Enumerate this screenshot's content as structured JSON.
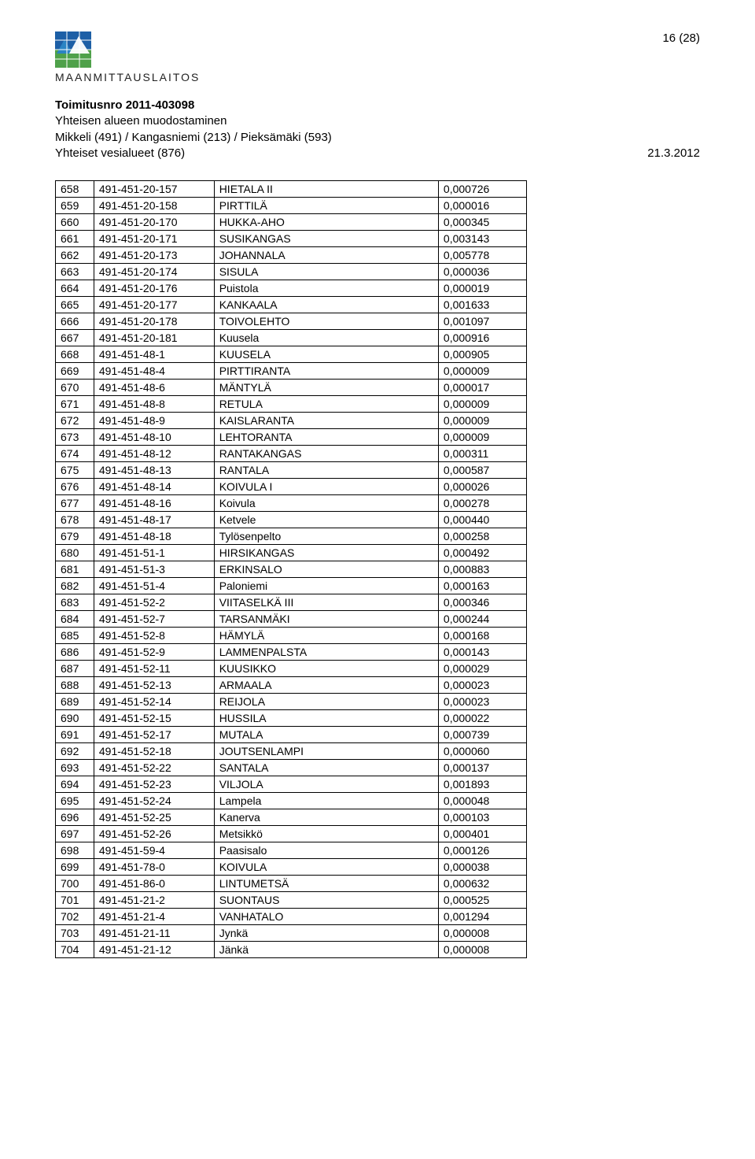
{
  "page_number": "16 (28)",
  "logo_text": "MAANMITTAUSLAITOS",
  "logo_colors": {
    "blue1": "#1d5fa6",
    "blue2": "#2b84c4",
    "green": "#4fa14a"
  },
  "header": {
    "line1": "Toimitusnro 2011-403098",
    "line2": "Yhteisen alueen muodostaminen",
    "line3": "Mikkeli (491) / Kangasniemi (213) / Pieksämäki (593)",
    "line4": "Yhteiset vesialueet (876)",
    "date": "21.3.2012"
  },
  "table": {
    "columns": [
      "n",
      "id",
      "name",
      "val"
    ],
    "rows": [
      [
        "658",
        "491-451-20-157",
        "HIETALA II",
        "0,000726"
      ],
      [
        "659",
        "491-451-20-158",
        "PIRTTILÄ",
        "0,000016"
      ],
      [
        "660",
        "491-451-20-170",
        "HUKKA-AHO",
        "0,000345"
      ],
      [
        "661",
        "491-451-20-171",
        "SUSIKANGAS",
        "0,003143"
      ],
      [
        "662",
        "491-451-20-173",
        "JOHANNALA",
        "0,005778"
      ],
      [
        "663",
        "491-451-20-174",
        "SISULA",
        "0,000036"
      ],
      [
        "664",
        "491-451-20-176",
        "Puistola",
        "0,000019"
      ],
      [
        "665",
        "491-451-20-177",
        "KANKAALA",
        "0,001633"
      ],
      [
        "666",
        "491-451-20-178",
        "TOIVOLEHTO",
        "0,001097"
      ],
      [
        "667",
        "491-451-20-181",
        "Kuusela",
        "0,000916"
      ],
      [
        "668",
        "491-451-48-1",
        "KUUSELA",
        "0,000905"
      ],
      [
        "669",
        "491-451-48-4",
        "PIRTTIRANTA",
        "0,000009"
      ],
      [
        "670",
        "491-451-48-6",
        "MÄNTYLÄ",
        "0,000017"
      ],
      [
        "671",
        "491-451-48-8",
        "RETULA",
        "0,000009"
      ],
      [
        "672",
        "491-451-48-9",
        "KAISLARANTA",
        "0,000009"
      ],
      [
        "673",
        "491-451-48-10",
        "LEHTORANTA",
        "0,000009"
      ],
      [
        "674",
        "491-451-48-12",
        "RANTAKANGAS",
        "0,000311"
      ],
      [
        "675",
        "491-451-48-13",
        "RANTALA",
        "0,000587"
      ],
      [
        "676",
        "491-451-48-14",
        "KOIVULA I",
        "0,000026"
      ],
      [
        "677",
        "491-451-48-16",
        "Koivula",
        "0,000278"
      ],
      [
        "678",
        "491-451-48-17",
        "Ketvele",
        "0,000440"
      ],
      [
        "679",
        "491-451-48-18",
        "Tylösenpelto",
        "0,000258"
      ],
      [
        "680",
        "491-451-51-1",
        "HIRSIKANGAS",
        "0,000492"
      ],
      [
        "681",
        "491-451-51-3",
        "ERKINSALO",
        "0,000883"
      ],
      [
        "682",
        "491-451-51-4",
        "Paloniemi",
        "0,000163"
      ],
      [
        "683",
        "491-451-52-2",
        "VIITASELKÄ III",
        "0,000346"
      ],
      [
        "684",
        "491-451-52-7",
        "TARSANMÄKI",
        "0,000244"
      ],
      [
        "685",
        "491-451-52-8",
        "HÄMYLÄ",
        "0,000168"
      ],
      [
        "686",
        "491-451-52-9",
        "LAMMENPALSTA",
        "0,000143"
      ],
      [
        "687",
        "491-451-52-11",
        "KUUSIKKO",
        "0,000029"
      ],
      [
        "688",
        "491-451-52-13",
        "ARMAALA",
        "0,000023"
      ],
      [
        "689",
        "491-451-52-14",
        "REIJOLA",
        "0,000023"
      ],
      [
        "690",
        "491-451-52-15",
        "HUSSILA",
        "0,000022"
      ],
      [
        "691",
        "491-451-52-17",
        "MUTALA",
        "0,000739"
      ],
      [
        "692",
        "491-451-52-18",
        "JOUTSENLAMPI",
        "0,000060"
      ],
      [
        "693",
        "491-451-52-22",
        "SANTALA",
        "0,000137"
      ],
      [
        "694",
        "491-451-52-23",
        "VILJOLA",
        "0,001893"
      ],
      [
        "695",
        "491-451-52-24",
        "Lampela",
        "0,000048"
      ],
      [
        "696",
        "491-451-52-25",
        "Kanerva",
        "0,000103"
      ],
      [
        "697",
        "491-451-52-26",
        "Metsikkö",
        "0,000401"
      ],
      [
        "698",
        "491-451-59-4",
        "Paasisalo",
        "0,000126"
      ],
      [
        "699",
        "491-451-78-0",
        "KOIVULA",
        "0,000038"
      ],
      [
        "700",
        "491-451-86-0",
        "LINTUMETSÄ",
        "0,000632"
      ],
      [
        "701",
        "491-451-21-2",
        "SUONTAUS",
        "0,000525"
      ],
      [
        "702",
        "491-451-21-4",
        "VANHATALO",
        "0,001294"
      ],
      [
        "703",
        "491-451-21-11",
        "Jynkä",
        "0,000008"
      ],
      [
        "704",
        "491-451-21-12",
        "Jänkä",
        "0,000008"
      ]
    ]
  }
}
